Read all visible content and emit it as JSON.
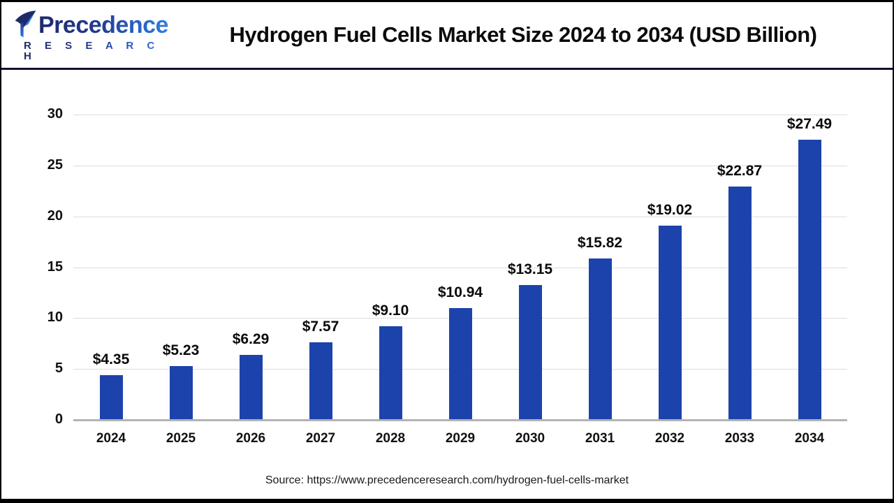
{
  "logo": {
    "brand": "Precedence",
    "sub": "R E S E A R C H"
  },
  "header": {
    "title": "Hydrogen Fuel Cells Market Size 2024 to 2034 (USD Billion)"
  },
  "source": {
    "text": "Source: https://www.precedenceresearch.com/hydrogen-fuel-cells-market"
  },
  "colors": {
    "bar": "#1c43ab",
    "gridline": "#dcdcdc",
    "axis_line": "#b3b3b3",
    "header_divider": "#0f1233",
    "logo_gradient_dark": "#1e2a6a",
    "logo_gradient_light": "#2f7ee2"
  },
  "chart_data": {
    "type": "bar",
    "title": "Hydrogen Fuel Cells Market Size 2024 to 2034 (USD Billion)",
    "categories": [
      "2024",
      "2025",
      "2026",
      "2027",
      "2028",
      "2029",
      "2030",
      "2031",
      "2032",
      "2033",
      "2034"
    ],
    "values": [
      4.35,
      5.23,
      6.29,
      7.57,
      9.1,
      10.94,
      13.15,
      15.82,
      19.02,
      22.87,
      27.49
    ],
    "value_labels": [
      "$4.35",
      "$5.23",
      "$6.29",
      "$7.57",
      "$9.10",
      "$10.94",
      "$13.15",
      "$15.82",
      "$19.02",
      "$22.87",
      "$27.49"
    ],
    "xlabel": "",
    "ylabel": "",
    "ylim": [
      0,
      30
    ],
    "yticks": [
      0,
      5,
      10,
      15,
      20,
      25,
      30
    ],
    "grid": true,
    "legend": false
  }
}
